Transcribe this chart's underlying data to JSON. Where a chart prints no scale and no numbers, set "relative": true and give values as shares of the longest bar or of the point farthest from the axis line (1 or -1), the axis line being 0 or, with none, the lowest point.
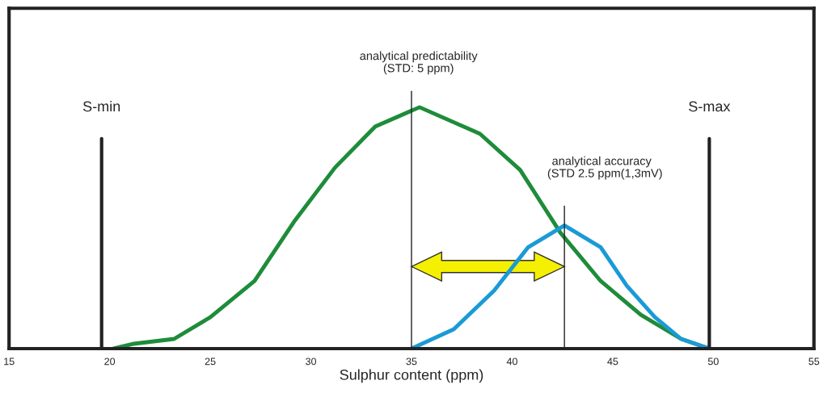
{
  "chart_data": {
    "type": "line",
    "relative": true,
    "xlabel": "Sulphur content (ppm)",
    "xlim": [
      15,
      55
    ],
    "xticks": [
      15,
      20,
      25,
      30,
      35,
      40,
      45,
      50,
      55
    ],
    "grid": false,
    "series": [
      {
        "color": "#1e8c3a",
        "x": [
          20.2,
          21.2,
          23.2,
          25.0,
          27.2,
          29.2,
          31.2,
          33.2,
          35.4,
          38.4,
          40.4,
          42.4,
          44.4,
          46.4,
          48.4,
          49.8
        ],
        "values": [
          0,
          0.02,
          0.04,
          0.13,
          0.28,
          0.53,
          0.75,
          0.92,
          1.0,
          0.89,
          0.74,
          0.48,
          0.28,
          0.14,
          0.04,
          0
        ]
      },
      {
        "color": "#1a9ad6",
        "x": [
          35,
          37.1,
          39.1,
          40.8,
          42.6,
          44.4,
          45.7,
          47.1,
          48.4,
          49.8
        ],
        "values": [
          0,
          0.08,
          0.24,
          0.42,
          0.51,
          0.42,
          0.26,
          0.13,
          0.04,
          0
        ]
      }
    ],
    "ref_lines": [
      {
        "axis": "x",
        "value": 19.6,
        "label": "S-min"
      },
      {
        "axis": "x",
        "value": 49.8,
        "label": "S-max"
      },
      {
        "axis": "x",
        "value": 35
      },
      {
        "axis": "x",
        "value": 42.6
      }
    ],
    "annotations": [
      "analytical predictability\n(STD: 5 ppm)",
      "analytical accuracy\n  (STD 2.5 ppm(1,3mV)"
    ]
  }
}
